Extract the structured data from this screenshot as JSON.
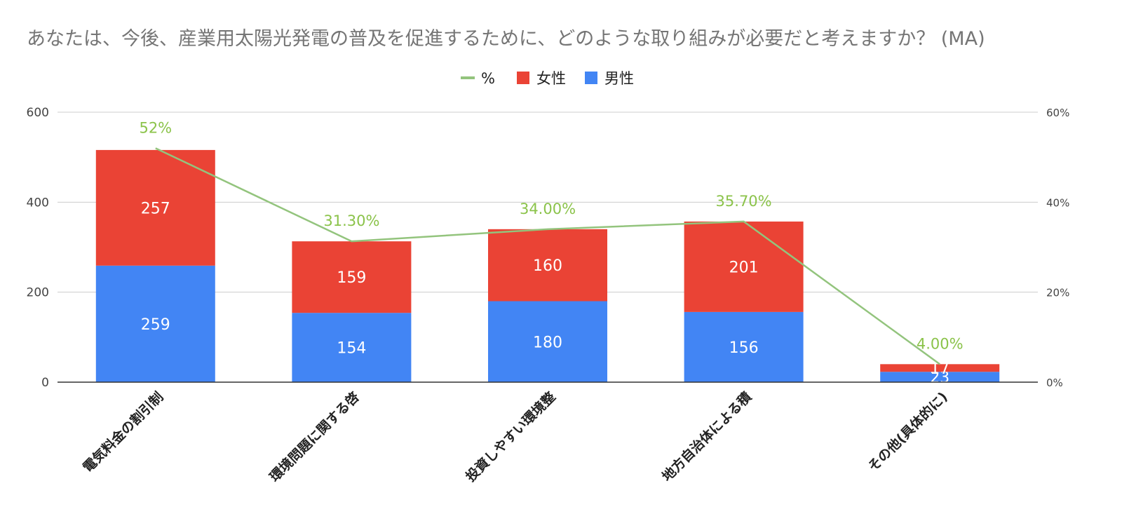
{
  "chart_data": {
    "type": "bar",
    "stacked": true,
    "title": "あなたは、今後、産業用太陽光発電の普及を促進するために、どのような取り組みが必要だと考えますか？ (MA)",
    "categories": [
      "電気料金の割引制",
      "環境問題に関する啓",
      "投資しやすい環境整",
      "地方自治体による積",
      "その他(具体的に)"
    ],
    "series": [
      {
        "name": "男性",
        "color": "#4285f4",
        "values": [
          259,
          154,
          180,
          156,
          23
        ],
        "labels": [
          "259",
          "154",
          "180",
          "156",
          "23"
        ]
      },
      {
        "name": "女性",
        "color": "#ea4335",
        "values": [
          257,
          159,
          160,
          201,
          17
        ],
        "labels": [
          "257",
          "159",
          "160",
          "201",
          "17"
        ]
      }
    ],
    "line": {
      "name": "%",
      "color": "#93c47d",
      "values": [
        52,
        31.3,
        34.0,
        35.7,
        4.0
      ],
      "labels": [
        "52%",
        "31.30%",
        "34.00%",
        "35.70%",
        "4.00%"
      ]
    },
    "legend": {
      "order": [
        "%",
        "女性",
        "男性"
      ],
      "position": "top"
    },
    "ylim": [
      0,
      600
    ],
    "yticks": [
      "600",
      "400",
      "200",
      "0"
    ],
    "y2lim": [
      0,
      60
    ],
    "y2ticks": [
      "60%",
      "40%",
      "20%",
      "0%"
    ],
    "grid": true
  }
}
